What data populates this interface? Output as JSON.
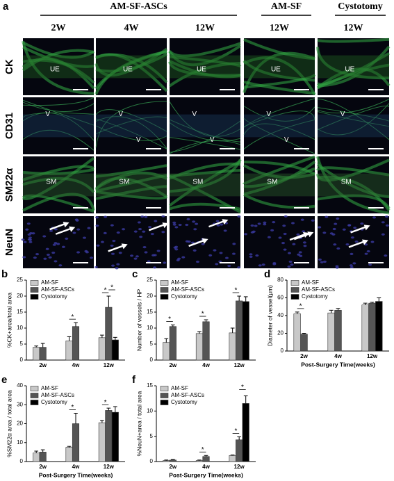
{
  "figure": {
    "panel_letter": "a",
    "group_headers": [
      "AM-SF-ASCs",
      "AM-SF",
      "Cystotomy"
    ],
    "time_headers": [
      "2W",
      "4W",
      "12W",
      "12W",
      "12W"
    ],
    "rows": [
      {
        "label": "CK",
        "cells": [
          [
            "UE"
          ],
          [
            "UE"
          ],
          [
            "UE"
          ],
          [
            "UE"
          ],
          [
            "UE"
          ]
        ]
      },
      {
        "label": "CD31",
        "cells": [
          [
            "V"
          ],
          [
            "V",
            "V"
          ],
          [
            "V",
            "V"
          ],
          [
            "V",
            "V"
          ],
          [
            "V"
          ]
        ]
      },
      {
        "label": "SM22α",
        "cells": [
          [
            "SM"
          ],
          [
            "SM"
          ],
          [
            "SM"
          ],
          [
            "SM"
          ],
          [
            "SM"
          ]
        ]
      },
      {
        "label": "NeuN",
        "cells": [
          [],
          [],
          [],
          [],
          []
        ]
      }
    ],
    "significance_marker": "*"
  },
  "chart_data": [
    {
      "type": "bar",
      "label": "b",
      "ylabel": "%CK+area/total area",
      "categories": [
        "2w",
        "4w",
        "12w"
      ],
      "ylim": [
        0,
        25
      ],
      "yticks": [
        0,
        5,
        10,
        15,
        20,
        25
      ],
      "series": [
        {
          "name": "AM-SF",
          "color": "#c8c8c8",
          "values": [
            4,
            6,
            7
          ],
          "errors": [
            0.4,
            1.3,
            0.8
          ]
        },
        {
          "name": "AM-SF-ASCs",
          "color": "#555555",
          "values": [
            4,
            10.5,
            16.5
          ],
          "errors": [
            1.2,
            1.2,
            3.5
          ]
        },
        {
          "name": "Cystotomy",
          "color": "#000000",
          "values": [
            null,
            null,
            6.3
          ],
          "errors": [
            null,
            null,
            0.8
          ]
        }
      ]
    },
    {
      "type": "bar",
      "label": "c",
      "ylabel": "Number of vessels / HP",
      "categories": [
        "2w",
        "4w",
        "12w"
      ],
      "ylim": [
        0,
        25
      ],
      "yticks": [
        0,
        5,
        10,
        15,
        20,
        25
      ],
      "series": [
        {
          "name": "AM-SF",
          "color": "#c8c8c8",
          "values": [
            5.5,
            8.3,
            8.5
          ],
          "errors": [
            1.2,
            0.6,
            1.5
          ]
        },
        {
          "name": "AM-SF-ASCs",
          "color": "#555555",
          "values": [
            10.5,
            12,
            18.5
          ],
          "errors": [
            0.5,
            0.6,
            1.5
          ]
        },
        {
          "name": "Cystotomy",
          "color": "#000000",
          "values": [
            null,
            null,
            18.3
          ],
          "errors": [
            null,
            null,
            1.5
          ]
        }
      ]
    },
    {
      "type": "bar",
      "label": "d",
      "ylabel": "Diameter of vessel(μm)",
      "xlabel": "Post-Surgery Time(weeks)",
      "categories": [
        "2w",
        "4w",
        "12w"
      ],
      "ylim": [
        0,
        80
      ],
      "yticks": [
        0,
        20,
        40,
        60,
        80
      ],
      "series": [
        {
          "name": "AM-SF",
          "color": "#c8c8c8",
          "values": [
            42,
            43,
            52
          ],
          "errors": [
            2,
            3,
            2
          ]
        },
        {
          "name": "AM-SF-ASCs",
          "color": "#555555",
          "values": [
            19,
            46,
            54
          ],
          "errors": [
            1,
            2,
            1
          ]
        },
        {
          "name": "Cystotomy",
          "color": "#000000",
          "values": [
            null,
            null,
            56
          ],
          "errors": [
            null,
            null,
            4
          ]
        }
      ]
    },
    {
      "type": "bar",
      "label": "e",
      "ylabel": "%SM22α area / total area",
      "xlabel": "Post-Surgery Time(weeks)",
      "categories": [
        "2w",
        "4w",
        "12w"
      ],
      "ylim": [
        0,
        40
      ],
      "yticks": [
        0,
        10,
        20,
        30,
        40
      ],
      "series": [
        {
          "name": "AM-SF",
          "color": "#c8c8c8",
          "values": [
            4.5,
            7.5,
            20.5
          ],
          "errors": [
            1,
            0.5,
            1.2
          ]
        },
        {
          "name": "AM-SF-ASCs",
          "color": "#555555",
          "values": [
            5,
            20,
            27
          ],
          "errors": [
            1.2,
            5.5,
            1.2
          ]
        },
        {
          "name": "Cystotomy",
          "color": "#000000",
          "values": [
            null,
            null,
            26
          ],
          "errors": [
            null,
            null,
            3
          ]
        }
      ]
    },
    {
      "type": "bar",
      "label": "f",
      "ylabel": "%NeuN+area / total area",
      "xlabel": "Post-Surgery Time(weeks)",
      "categories": [
        "2w",
        "4w",
        "12w"
      ],
      "ylim": [
        0,
        15
      ],
      "yticks": [
        0,
        5,
        10,
        15
      ],
      "series": [
        {
          "name": "AM-SF",
          "color": "#c8c8c8",
          "values": [
            0.2,
            0.2,
            1.2
          ],
          "errors": [
            0.1,
            0.1,
            0.1
          ]
        },
        {
          "name": "AM-SF-ASCs",
          "color": "#555555",
          "values": [
            0.3,
            1.0,
            4.3
          ],
          "errors": [
            0.1,
            0.2,
            0.6
          ]
        },
        {
          "name": "Cystotomy",
          "color": "#000000",
          "values": [
            null,
            null,
            11.5
          ],
          "errors": [
            null,
            null,
            1.5
          ]
        }
      ]
    }
  ]
}
